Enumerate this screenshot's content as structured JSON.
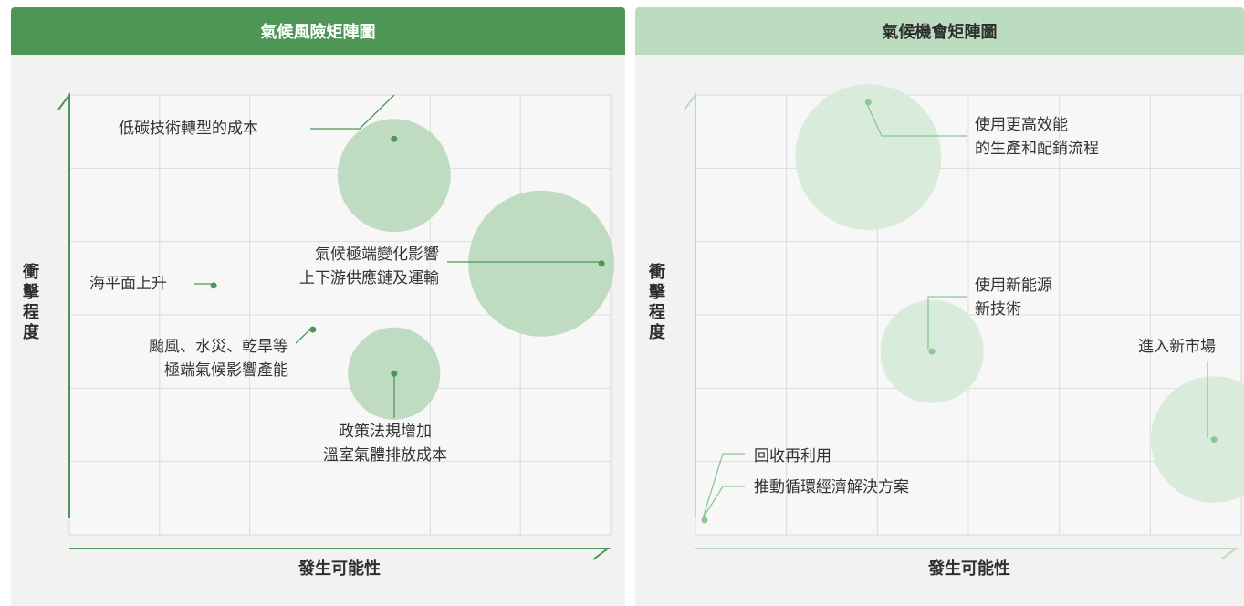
{
  "chart_data": [
    {
      "type": "scatter",
      "title": "氣候風險矩陣圖",
      "xlabel": "發生可能性",
      "ylabel": "衝擊程度",
      "xlim": [
        0,
        6
      ],
      "ylim": [
        0,
        6
      ],
      "grid": true,
      "colors": {
        "header": "#4e9656",
        "title_text": "#ffffff",
        "axis": "#4e9656",
        "bubble": "#bcd9bf",
        "leader": "#4e9656",
        "label": "#333333"
      },
      "points": [
        {
          "label_lines": [
            "低碳技術轉型的成本"
          ],
          "x": 3.6,
          "y": 5.4,
          "bubble_size": 3
        },
        {
          "label_lines": [
            "氣候極端變化影響",
            "上下游供應鏈及運輸"
          ],
          "x": 5.9,
          "y": 3.7,
          "bubble_size": 5
        },
        {
          "label_lines": [
            "海平面上升"
          ],
          "x": 1.6,
          "y": 3.4,
          "bubble_size": 0
        },
        {
          "label_lines": [
            "颱風、水災、乾旱等",
            "極端氣候影響產能"
          ],
          "x": 2.7,
          "y": 2.8,
          "bubble_size": 0
        },
        {
          "label_lines": [
            "政策法規增加",
            "溫室氣體排放成本"
          ],
          "x": 3.6,
          "y": 2.2,
          "bubble_size": 2
        }
      ]
    },
    {
      "type": "scatter",
      "title": "氣候機會矩陣圖",
      "xlabel": "發生可能性",
      "ylabel": "衝擊程度",
      "xlim": [
        0,
        6
      ],
      "ylim": [
        0,
        6
      ],
      "grid": true,
      "colors": {
        "header": "#bcdcc0",
        "title_text": "#2e2e2e",
        "axis": "#b9dbbe",
        "bubble": "#d7ead9",
        "leader": "#8cc796",
        "label": "#333333"
      },
      "points": [
        {
          "label_lines": [
            "使用更高效能",
            "的生產和配銷流程"
          ],
          "x": 1.9,
          "y": 5.9,
          "bubble_size": 4
        },
        {
          "label_lines": [
            "使用新能源",
            "新技術"
          ],
          "x": 2.6,
          "y": 2.5,
          "bubble_size": 2
        },
        {
          "label_lines": [
            "進入新市場"
          ],
          "x": 5.7,
          "y": 1.3,
          "bubble_size": 3
        },
        {
          "label_lines": [
            "回收再利用"
          ],
          "x": 0.1,
          "y": 0.2,
          "bubble_size": 0
        },
        {
          "label_lines": [
            "推動循環經濟解決方案"
          ],
          "x": 0.1,
          "y": 0.2,
          "bubble_size": 0
        }
      ]
    }
  ]
}
